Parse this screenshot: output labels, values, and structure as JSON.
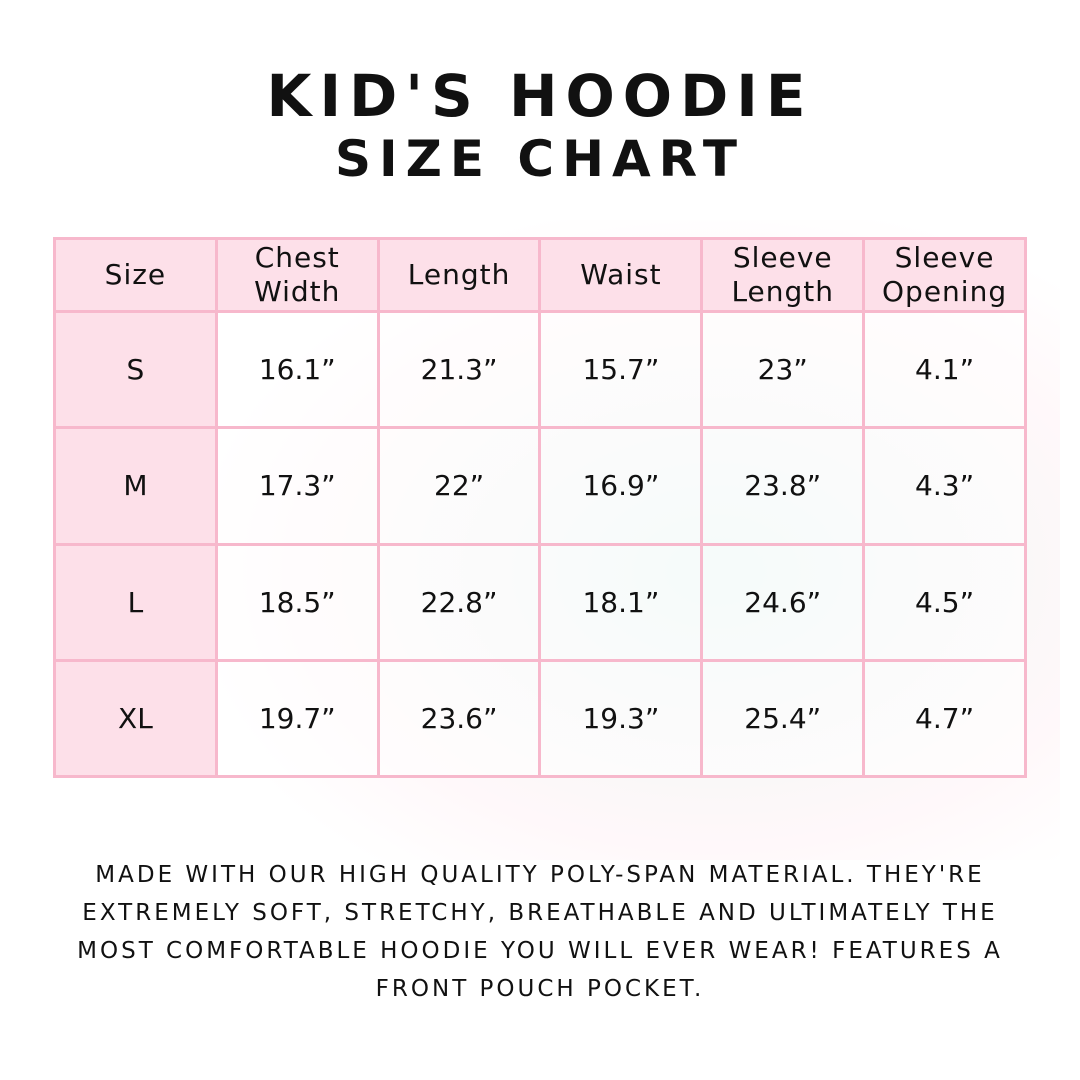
{
  "title": {
    "line1": "Kid's Hoodie",
    "line2": "Size Chart"
  },
  "colors": {
    "header_bg": "#fde0e9",
    "border": "#f7b8cc",
    "text": "#111111"
  },
  "table": {
    "headers": [
      "Size",
      "Chest Width",
      "Length",
      "Waist",
      "Sleeve Length",
      "Sleeve Opening"
    ],
    "rows": [
      [
        "S",
        "16.1”",
        "21.3”",
        "15.7”",
        "23”",
        "4.1”"
      ],
      [
        "M",
        "17.3”",
        "22”",
        "16.9”",
        "23.8”",
        "4.3”"
      ],
      [
        "L",
        "18.5”",
        "22.8”",
        "18.1”",
        "24.6”",
        "4.5”"
      ],
      [
        "XL",
        "19.7”",
        "23.6”",
        "19.3”",
        "25.4”",
        "4.7”"
      ]
    ]
  },
  "description": "Made with our high quality poly-span material. They're extremely soft, stretchy, breathable and ultimately the most comfortable hoodie you will ever wear! Features a front pouch pocket."
}
